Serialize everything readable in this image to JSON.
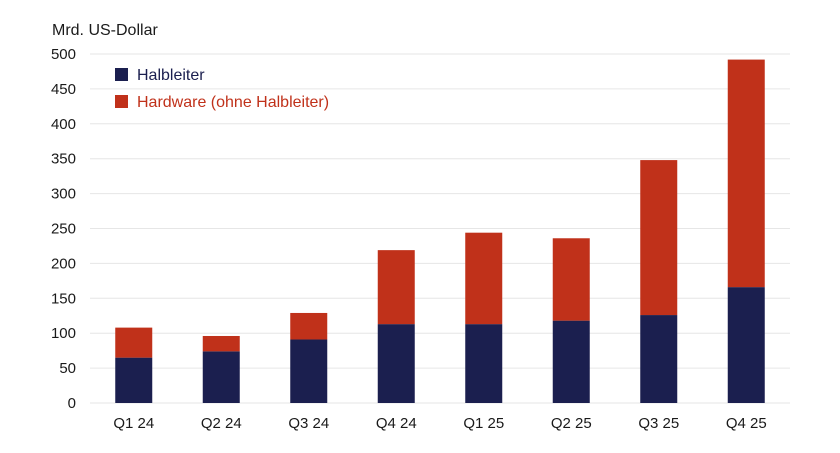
{
  "chart_data": {
    "type": "bar",
    "stacked": true,
    "ylabel": "Mrd. US-Dollar",
    "ylim": [
      0,
      500
    ],
    "yticks": [
      0,
      50,
      100,
      150,
      200,
      250,
      300,
      350,
      400,
      450,
      500
    ],
    "grid": true,
    "legend_position": "top-left",
    "categories": [
      "Q1 24",
      "Q2 24",
      "Q3 24",
      "Q4 24",
      "Q1 25",
      "Q2 25",
      "Q3 25",
      "Q4 25"
    ],
    "series": [
      {
        "name": "Halbleiter",
        "color": "#1b1f4f",
        "values": [
          65,
          74,
          91,
          113,
          113,
          118,
          126,
          166
        ]
      },
      {
        "name": "Hardware (ohne Halbleiter)",
        "color": "#c0311a",
        "values": [
          43,
          22,
          38,
          106,
          131,
          118,
          222,
          326
        ]
      }
    ]
  }
}
